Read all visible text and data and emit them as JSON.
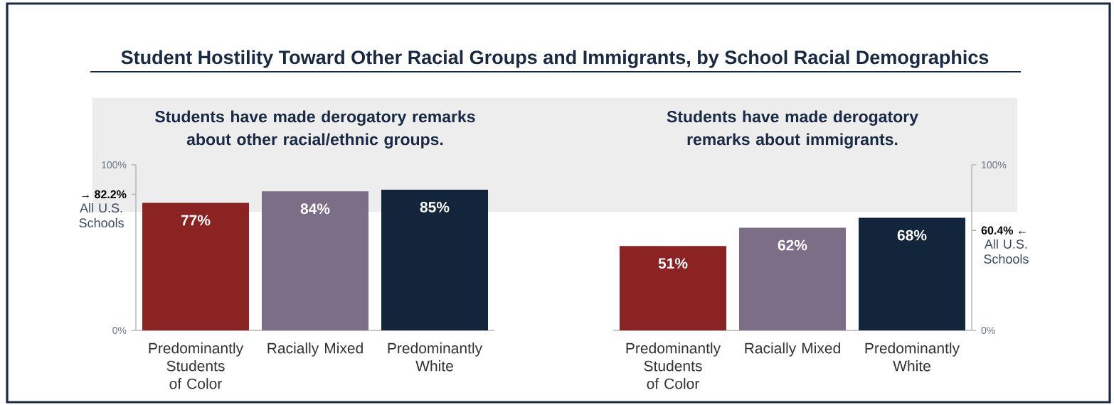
{
  "chart_data": [
    {
      "type": "bar",
      "title": "Student Hostility Toward Other Racial Groups and Immigrants, by School Racial Demographics",
      "subtitle": "Students have made derogatory remarks about other racial/ethnic groups.",
      "categories": [
        "Predominantly Students of Color",
        "Racially Mixed",
        "Predominantly White"
      ],
      "values": [
        77,
        84,
        85
      ],
      "colors": [
        "#8b2323",
        "#7d6e88",
        "#13253b"
      ],
      "value_labels": [
        "77%",
        "84%",
        "85%"
      ],
      "ylim": [
        0,
        100
      ],
      "yticks": [
        {
          "value": 0,
          "label": "0%"
        },
        {
          "value": 82.2,
          "label": "→ 82.2%"
        },
        {
          "value": 100,
          "label": "100%"
        }
      ],
      "annotations": [
        "All U.S. Schools"
      ]
    },
    {
      "type": "bar",
      "subtitle": "Students have made derogatory remarks about immigrants.",
      "categories": [
        "Predominantly Students of Color",
        "Racially Mixed",
        "Predominantly White"
      ],
      "series": [
        {
          "axis": "y2",
          "values": [
            51,
            62,
            68
          ],
          "colors": [
            "#8b2323",
            "#7d6e88",
            "#13253b"
          ],
          "value_labels": [
            "51%",
            "62%",
            "68%"
          ]
        }
      ],
      "y2lim": [
        0,
        100
      ],
      "y2ticks": [
        {
          "value": 0,
          "label": "0%"
        },
        {
          "value": 60.4,
          "label": "60.4% ←"
        },
        {
          "value": 100,
          "label": "100%"
        }
      ],
      "annotations": [
        "All U.S. Schools"
      ]
    }
  ]
}
